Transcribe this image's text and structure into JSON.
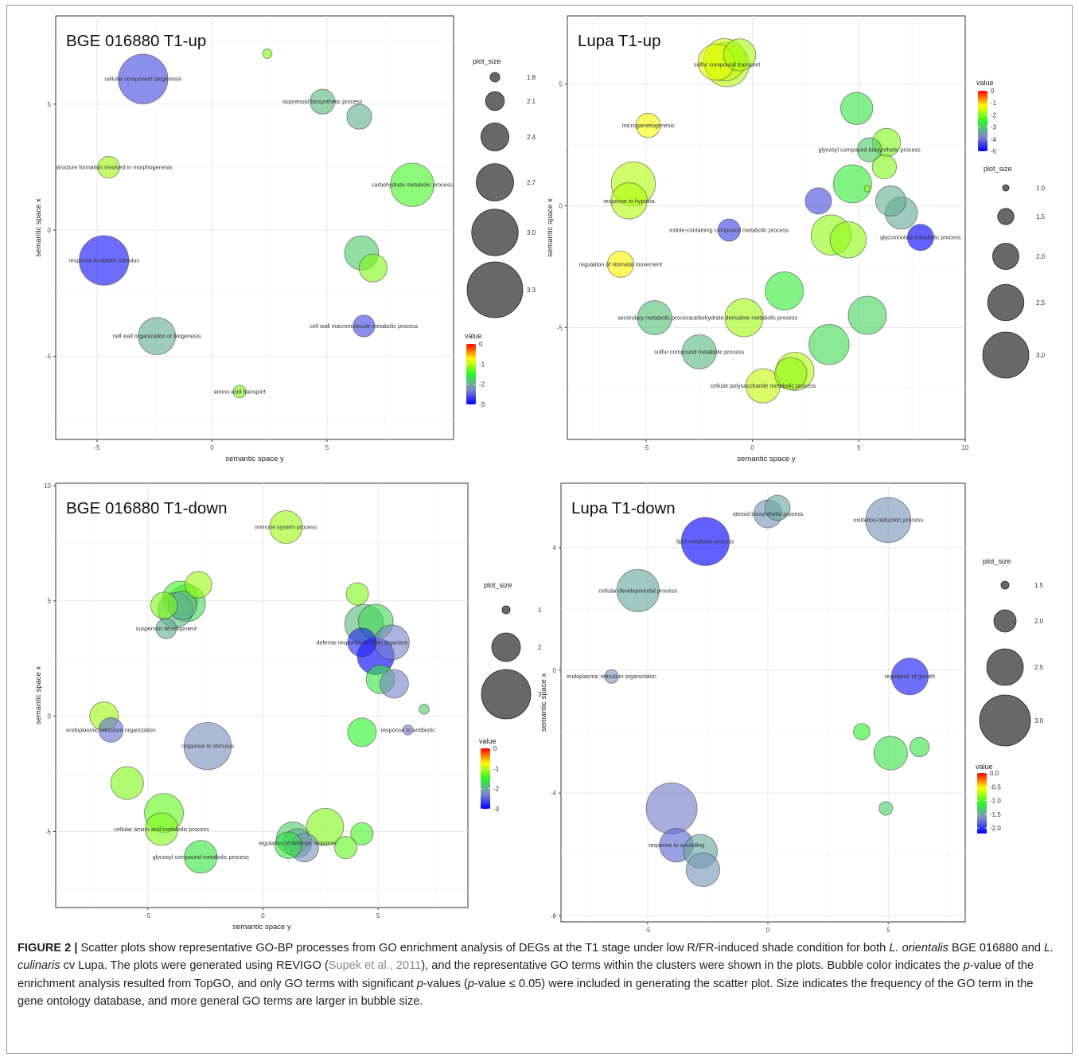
{
  "figure_label": "FIGURE 2 |",
  "caption": {
    "t1": " Scatter plots show representative GO-BP processes from GO enrichment analysis of DEGs at the T1 stage under low R/FR-induced shade condition for both ",
    "sp1": "L. orientalis",
    "t2": " BGE 016880 and ",
    "sp2": "L. culinaris",
    "t3": " cv Lupa. The plots were generated using REVIGO (",
    "ref": "Supek et al., 2011",
    "t4": "), and the representative GO terms within the clusters were shown in the plots. Bubble color indicates the ",
    "p1": "p",
    "t5": "-value of the enrichment analysis resulted from TopGO, and only GO terms with significant ",
    "p2": "p",
    "t6": "-values (",
    "p3": "p",
    "t7": "-value ≤ 0.05) were included in generating the scatter plot. Size indicates the frequency of the GO term in the gene ontology database, and more general GO terms are larger in bubble size."
  },
  "chart_data": [
    {
      "id": "A",
      "type": "scatter",
      "title": "BGE 016880 T1-up",
      "xlabel": "semantic space y",
      "ylabel": "semantic space x",
      "xlim": [
        -6.8,
        10.5
      ],
      "ylim": [
        -8.3,
        8.5
      ],
      "xticks": [
        -5,
        0,
        5
      ],
      "yticks": [
        -5,
        0,
        5
      ],
      "size_legend": {
        "title": "plot_size",
        "values": [
          1.8,
          2.1,
          2.4,
          2.7,
          3.0,
          3.3
        ]
      },
      "color_legend": {
        "title": "value",
        "min": -3,
        "max": 0,
        "ticks": [
          0,
          -1,
          -2,
          -3
        ]
      },
      "points": [
        {
          "x": 2.4,
          "y": 7.0,
          "size": 1.8,
          "value": -1.2,
          "label": ""
        },
        {
          "x": -3.0,
          "y": 6.0,
          "size": 3.1,
          "value": -2.6,
          "label": "cellular component biogenesis"
        },
        {
          "x": 4.8,
          "y": 5.1,
          "size": 2.3,
          "value": -1.9,
          "label": "isoprenoid biosynthetic process"
        },
        {
          "x": 6.4,
          "y": 4.5,
          "size": 2.3,
          "value": -2.0,
          "label": ""
        },
        {
          "x": -4.5,
          "y": 2.5,
          "size": 2.2,
          "value": -1.1,
          "label": "cell structure formation involved in morphogenesis"
        },
        {
          "x": 8.7,
          "y": 1.8,
          "size": 2.9,
          "value": -1.4,
          "label": "carbohydrate metabolic process"
        },
        {
          "x": -4.7,
          "y": -1.2,
          "size": 3.1,
          "value": -2.9,
          "label": "response to abiotic stimulus"
        },
        {
          "x": 6.5,
          "y": -0.9,
          "size": 2.6,
          "value": -1.8,
          "label": ""
        },
        {
          "x": 7.0,
          "y": -1.5,
          "size": 2.4,
          "value": -1.2,
          "label": ""
        },
        {
          "x": 6.6,
          "y": -3.8,
          "size": 2.2,
          "value": -2.6,
          "label": "cell wall macromolecule metabolic process"
        },
        {
          "x": -2.4,
          "y": -4.2,
          "size": 2.7,
          "value": -2.0,
          "label": "cell wall organization or biogenesis"
        },
        {
          "x": 1.2,
          "y": -6.4,
          "size": 1.9,
          "value": -1.2,
          "label": "amino acid transport"
        }
      ]
    },
    {
      "id": "B",
      "type": "scatter",
      "title": "Lupa T1-up",
      "xlabel": "semantic space y",
      "ylabel": "semantic space x",
      "xlim": [
        -8.7,
        10.0
      ],
      "ylim": [
        -9.6,
        7.8
      ],
      "xticks": [
        -5,
        0,
        5,
        10
      ],
      "yticks": [
        -5,
        0,
        5
      ],
      "size_legend": {
        "title": "plot_size",
        "values": [
          1.0,
          1.5,
          2.0,
          2.5,
          3.0
        ]
      },
      "color_legend": {
        "title": "value",
        "min": -5,
        "max": 0,
        "ticks": [
          0,
          -1,
          -2,
          -3,
          -4,
          -5
        ]
      },
      "points": [
        {
          "x": -0.6,
          "y": 6.2,
          "size": 2.3,
          "value": -1.8,
          "label": ""
        },
        {
          "x": -1.3,
          "y": 6.0,
          "size": 2.8,
          "value": -1.6,
          "label": ""
        },
        {
          "x": -1.7,
          "y": 5.9,
          "size": 2.5,
          "value": -1.4,
          "label": ""
        },
        {
          "x": -1.2,
          "y": 5.8,
          "size": 2.9,
          "value": -1.7,
          "label": "sulfur compound transport"
        },
        {
          "x": -4.9,
          "y": 3.3,
          "size": 1.9,
          "value": -1.3,
          "label": "microgametogenesis"
        },
        {
          "x": 4.9,
          "y": 4.0,
          "size": 2.3,
          "value": -2.7,
          "label": ""
        },
        {
          "x": 6.3,
          "y": 2.6,
          "size": 2.1,
          "value": -2.0,
          "label": ""
        },
        {
          "x": 5.5,
          "y": 2.3,
          "size": 1.9,
          "value": -3.0,
          "label": "glycosyl compound biosynthetic process"
        },
        {
          "x": 6.2,
          "y": 1.6,
          "size": 1.9,
          "value": -2.0,
          "label": ""
        },
        {
          "x": -5.6,
          "y": 0.9,
          "size": 2.9,
          "value": -1.7,
          "label": ""
        },
        {
          "x": -5.8,
          "y": 0.2,
          "size": 2.5,
          "value": -1.7,
          "label": "response to hypoxia"
        },
        {
          "x": 4.7,
          "y": 0.9,
          "size": 2.6,
          "value": -2.6,
          "label": ""
        },
        {
          "x": 5.4,
          "y": 0.7,
          "size": 1.0,
          "value": -1.8,
          "label": ""
        },
        {
          "x": 3.1,
          "y": 0.2,
          "size": 2.0,
          "value": -4.3,
          "label": ""
        },
        {
          "x": 6.5,
          "y": 0.2,
          "size": 2.2,
          "value": -3.3,
          "label": ""
        },
        {
          "x": 7.0,
          "y": -0.3,
          "size": 2.3,
          "value": -3.4,
          "label": ""
        },
        {
          "x": 3.7,
          "y": -1.2,
          "size": 2.7,
          "value": -1.9,
          "label": ""
        },
        {
          "x": 4.5,
          "y": -1.4,
          "size": 2.5,
          "value": -1.9,
          "label": ""
        },
        {
          "x": 7.9,
          "y": -1.3,
          "size": 2.0,
          "value": -5.0,
          "label": "glycosinolate metabolic process"
        },
        {
          "x": -1.1,
          "y": -1.0,
          "size": 1.8,
          "value": -4.4,
          "label": "indole-containing compound metabolic process"
        },
        {
          "x": -6.2,
          "y": -2.4,
          "size": 2.0,
          "value": -1.2,
          "label": "regulation of stomatal movement"
        },
        {
          "x": 1.5,
          "y": -3.5,
          "size": 2.6,
          "value": -2.6,
          "label": ""
        },
        {
          "x": 5.4,
          "y": -4.5,
          "size": 2.6,
          "value": -2.9,
          "label": ""
        },
        {
          "x": -4.6,
          "y": -4.6,
          "size": 2.4,
          "value": -3.1,
          "label": "secondary metabolic process"
        },
        {
          "x": -0.4,
          "y": -4.6,
          "size": 2.6,
          "value": -1.8,
          "label": "carbohydrate derivative metabolic process"
        },
        {
          "x": 3.6,
          "y": -5.7,
          "size": 2.7,
          "value": -2.8,
          "label": ""
        },
        {
          "x": -2.5,
          "y": -6.0,
          "size": 2.4,
          "value": -3.2,
          "label": "sulfur compound metabolic process"
        },
        {
          "x": 2.0,
          "y": -6.8,
          "size": 2.6,
          "value": -1.7,
          "label": ""
        },
        {
          "x": 1.8,
          "y": -6.9,
          "size": 2.3,
          "value": -1.9,
          "label": ""
        },
        {
          "x": 0.5,
          "y": -7.4,
          "size": 2.4,
          "value": -1.6,
          "label": "cellular polysaccharide metabolic process"
        }
      ]
    },
    {
      "id": "C",
      "type": "scatter",
      "title": "BGE 016880 T1-down",
      "xlabel": "semantic space y",
      "ylabel": "semantic space x",
      "xlim": [
        -9.0,
        8.9
      ],
      "ylim": [
        -8.3,
        10.1
      ],
      "xticks": [
        -5,
        0,
        5
      ],
      "yticks": [
        -5,
        0,
        5,
        10
      ],
      "size_legend": {
        "title": "plot_size",
        "values": [
          1,
          2,
          3
        ]
      },
      "color_legend": {
        "title": "value",
        "min": -3,
        "max": 0,
        "ticks": [
          0,
          -1,
          -2,
          -3
        ]
      },
      "points": [
        {
          "x": 1.0,
          "y": 8.2,
          "size": 2.2,
          "value": -1.1,
          "label": "immune system process"
        },
        {
          "x": -2.8,
          "y": 5.7,
          "size": 1.9,
          "value": -1.1,
          "label": ""
        },
        {
          "x": -3.6,
          "y": 5.1,
          "size": 2.3,
          "value": -1.4,
          "label": ""
        },
        {
          "x": -3.3,
          "y": 4.9,
          "size": 2.4,
          "value": -1.7,
          "label": ""
        },
        {
          "x": -4.3,
          "y": 4.8,
          "size": 1.9,
          "value": -1.2,
          "label": ""
        },
        {
          "x": -3.8,
          "y": 4.6,
          "size": 2.3,
          "value": -1.9,
          "label": ""
        },
        {
          "x": -3.5,
          "y": 4.8,
          "size": 2.0,
          "value": -2.0,
          "label": ""
        },
        {
          "x": -4.2,
          "y": 3.8,
          "size": 1.6,
          "value": -2.0,
          "label": "suspensor development"
        },
        {
          "x": 4.1,
          "y": 5.3,
          "size": 1.7,
          "value": -1.2,
          "label": ""
        },
        {
          "x": 4.9,
          "y": 4.1,
          "size": 2.3,
          "value": -1.7,
          "label": ""
        },
        {
          "x": 4.4,
          "y": 4.0,
          "size": 2.5,
          "value": -1.9,
          "label": ""
        },
        {
          "x": 4.3,
          "y": 3.2,
          "size": 2.0,
          "value": -2.8,
          "label": "defense response to other organism"
        },
        {
          "x": 5.6,
          "y": 3.2,
          "size": 2.3,
          "value": -2.3,
          "label": ""
        },
        {
          "x": 4.9,
          "y": 2.6,
          "size": 2.4,
          "value": -3.0,
          "label": ""
        },
        {
          "x": 5.1,
          "y": 1.6,
          "size": 2.0,
          "value": -1.6,
          "label": ""
        },
        {
          "x": 5.7,
          "y": 1.4,
          "size": 2.0,
          "value": -2.3,
          "label": ""
        },
        {
          "x": 7.0,
          "y": 0.3,
          "size": 1.1,
          "value": -1.8,
          "label": ""
        },
        {
          "x": 6.3,
          "y": -0.6,
          "size": 1.1,
          "value": -2.3,
          "label": "response to antibiotic"
        },
        {
          "x": 4.3,
          "y": -0.7,
          "size": 2.0,
          "value": -1.5,
          "label": ""
        },
        {
          "x": -6.9,
          "y": 0.0,
          "size": 2.0,
          "value": -1.1,
          "label": ""
        },
        {
          "x": -6.6,
          "y": -0.6,
          "size": 1.8,
          "value": -2.4,
          "label": "endoplasmic reticulum organization"
        },
        {
          "x": -2.4,
          "y": -1.3,
          "size": 2.9,
          "value": -2.2,
          "label": "response to stimulus"
        },
        {
          "x": -5.9,
          "y": -2.9,
          "size": 2.2,
          "value": -1.2,
          "label": ""
        },
        {
          "x": -4.3,
          "y": -4.2,
          "size": 2.5,
          "value": -1.3,
          "label": ""
        },
        {
          "x": -4.4,
          "y": -4.9,
          "size": 2.2,
          "value": -1.2,
          "label": "cellular amino acid metabolic process"
        },
        {
          "x": -2.7,
          "y": -6.1,
          "size": 2.2,
          "value": -1.6,
          "label": "glycosyl compound metabolic process"
        },
        {
          "x": 2.7,
          "y": -4.8,
          "size": 2.4,
          "value": -1.2,
          "label": ""
        },
        {
          "x": 1.3,
          "y": -5.3,
          "size": 2.2,
          "value": -1.8,
          "label": ""
        },
        {
          "x": 1.5,
          "y": -5.5,
          "size": 2.0,
          "value": -2.0,
          "label": "regulation of defense response"
        },
        {
          "x": 1.1,
          "y": -5.6,
          "size": 1.9,
          "value": -1.6,
          "label": ""
        },
        {
          "x": 1.8,
          "y": -5.7,
          "size": 2.0,
          "value": -2.2,
          "label": ""
        },
        {
          "x": 4.3,
          "y": -5.1,
          "size": 1.7,
          "value": -1.4,
          "label": ""
        },
        {
          "x": 3.6,
          "y": -5.7,
          "size": 1.7,
          "value": -1.3,
          "label": ""
        }
      ]
    },
    {
      "id": "D",
      "type": "scatter",
      "title": "Lupa T1-down",
      "xlabel": "semantic space y",
      "ylabel": "semantic space x",
      "xlim": [
        -8.6,
        8.2
      ],
      "ylim": [
        -8.2,
        6.1
      ],
      "xticks": [
        -5,
        0,
        5
      ],
      "yticks": [
        -8,
        -4,
        0,
        4
      ],
      "size_legend": {
        "title": "plot_size",
        "values": [
          1.5,
          2.0,
          2.5,
          3.0
        ]
      },
      "color_legend": {
        "title": "value",
        "min": -2.2,
        "max": 0,
        "ticks": [
          0.0,
          -0.5,
          -1.0,
          -1.5,
          -2.0
        ]
      },
      "points": [
        {
          "x": 0.4,
          "y": 5.3,
          "size": 2.1,
          "value": -1.5,
          "label": ""
        },
        {
          "x": 0.0,
          "y": 5.1,
          "size": 2.2,
          "value": -1.6,
          "label": "steroid biosynthetic process"
        },
        {
          "x": 5.0,
          "y": 4.9,
          "size": 2.8,
          "value": -1.6,
          "label": "oxidation-reduction process"
        },
        {
          "x": -2.6,
          "y": 4.2,
          "size": 2.9,
          "value": -2.2,
          "label": "lipid metabolic process"
        },
        {
          "x": -5.4,
          "y": 2.6,
          "size": 2.7,
          "value": -1.5,
          "label": "cellular developmental process"
        },
        {
          "x": -6.5,
          "y": -0.2,
          "size": 1.7,
          "value": -1.6,
          "label": "endoplasmic reticulum organization"
        },
        {
          "x": 5.9,
          "y": -0.2,
          "size": 2.5,
          "value": -2.1,
          "label": "regulation of growth"
        },
        {
          "x": 3.9,
          "y": -2.0,
          "size": 1.8,
          "value": -1.1,
          "label": ""
        },
        {
          "x": 5.1,
          "y": -2.7,
          "size": 2.4,
          "value": -1.2,
          "label": ""
        },
        {
          "x": 6.3,
          "y": -2.5,
          "size": 1.9,
          "value": -1.2,
          "label": ""
        },
        {
          "x": 4.9,
          "y": -4.5,
          "size": 1.7,
          "value": -1.3,
          "label": ""
        },
        {
          "x": 4.6,
          "y": -4.8,
          "size": 1.0,
          "value": -1.1,
          "label": ""
        },
        {
          "x": -4.0,
          "y": -4.5,
          "size": 3.0,
          "value": -1.7,
          "label": ""
        },
        {
          "x": -3.8,
          "y": -5.7,
          "size": 2.4,
          "value": -1.8,
          "label": "response to wounding"
        },
        {
          "x": -2.8,
          "y": -5.9,
          "size": 2.4,
          "value": -1.5,
          "label": ""
        },
        {
          "x": -2.7,
          "y": -6.5,
          "size": 2.4,
          "value": -1.6,
          "label": ""
        }
      ]
    }
  ]
}
